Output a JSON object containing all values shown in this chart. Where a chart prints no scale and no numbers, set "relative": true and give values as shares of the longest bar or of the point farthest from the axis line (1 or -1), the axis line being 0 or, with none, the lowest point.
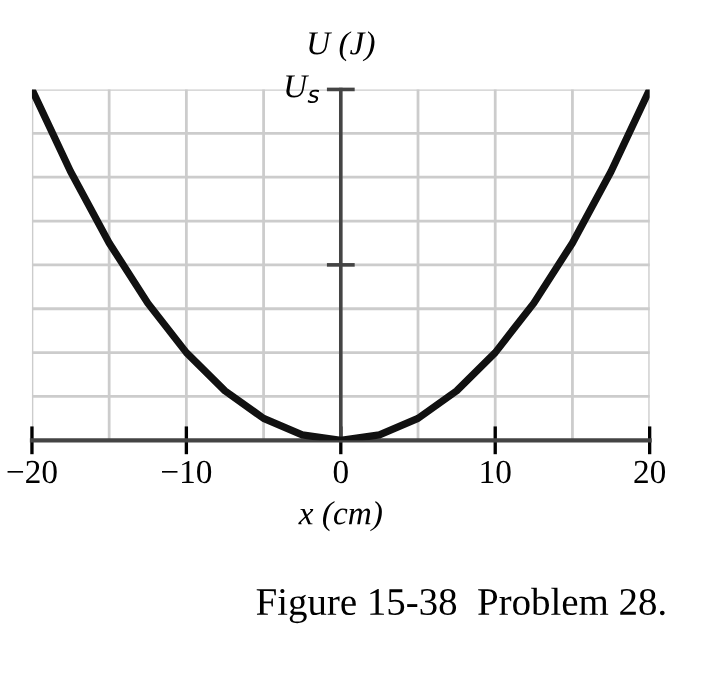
{
  "chart_data": {
    "type": "line",
    "relative": true,
    "ylabel": "U (J)",
    "xlabel": "x (cm)",
    "x": [
      -20,
      -17.5,
      -15,
      -12.5,
      -10,
      -7.5,
      -5,
      -2.5,
      0,
      2.5,
      5,
      7.5,
      10,
      12.5,
      15,
      17.5,
      20
    ],
    "series": [
      {
        "color": "#111111",
        "values": [
          1,
          0.766,
          0.5625,
          0.391,
          0.25,
          0.141,
          0.0625,
          0.0156,
          0,
          0.0156,
          0.0625,
          0.141,
          0.25,
          0.391,
          0.5625,
          0.766,
          1
        ]
      }
    ],
    "xlim": [
      -20,
      20
    ],
    "xticks": [
      {
        "value": -20,
        "label": "−20"
      },
      {
        "value": -10,
        "label": "−10"
      },
      0,
      10,
      20
    ],
    "grid": true,
    "line_style": "solid",
    "marker": "none",
    "annotations": [
      "U$_{s}$",
      "Figure 15-38  Problem 28."
    ]
  }
}
